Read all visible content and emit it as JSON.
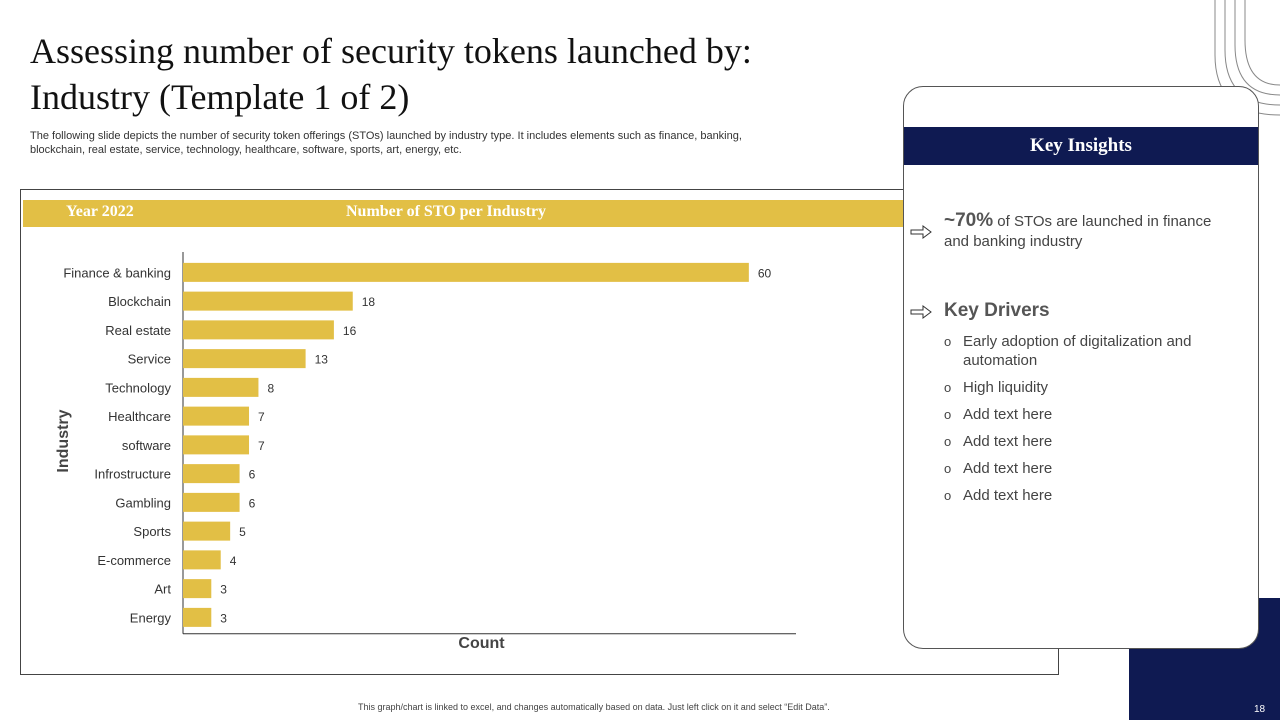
{
  "slide": {
    "title_line1": "Assessing number of security tokens launched by:",
    "title_line2": "Industry (Template 1 of 2)",
    "subtitle_line1": "The following slide depicts the number of security token offerings (STOs) launched by industry type.  It includes elements such as finance, banking,",
    "subtitle_line2": "blockchain, real estate, service, technology, healthcare, software, sports, art, energy, etc.",
    "footer": "This graph/chart is linked to excel, and changes automatically based on data. Just left click on it and select “Edit Data”.",
    "page_number": "18"
  },
  "chart_header": {
    "year": "Year 2022",
    "title": "Number of STO per Industry"
  },
  "chart_data": {
    "type": "bar",
    "orientation": "horizontal",
    "title": "Number of STO per Industry",
    "xlabel": "Count",
    "ylabel": "Industry",
    "categories": [
      "Finance & banking",
      "Blockchain",
      "Real estate",
      "Service",
      "Technology",
      "Healthcare",
      "software",
      "Infrostructure",
      "Gambling",
      "Sports",
      "E-commerce",
      "Art",
      "Energy"
    ],
    "values": [
      60,
      18,
      16,
      13,
      8,
      7,
      7,
      6,
      6,
      5,
      4,
      3,
      3
    ],
    "xlim": [
      0,
      65
    ],
    "grid": false,
    "bar_color": "#e2bf45"
  },
  "insights": {
    "heading": "Key Insights",
    "stat_value": "~70%",
    "stat_text": "of STOs are launched in finance and banking industry",
    "drivers_title": "Key Drivers",
    "drivers": [
      "Early adoption of digitalization and automation",
      "High liquidity",
      "Add text here",
      "Add text here",
      "Add text here",
      "Add text here"
    ],
    "bullet": "o"
  },
  "colors": {
    "accent_gold": "#e2bf45",
    "navy": "#0f1a52"
  }
}
